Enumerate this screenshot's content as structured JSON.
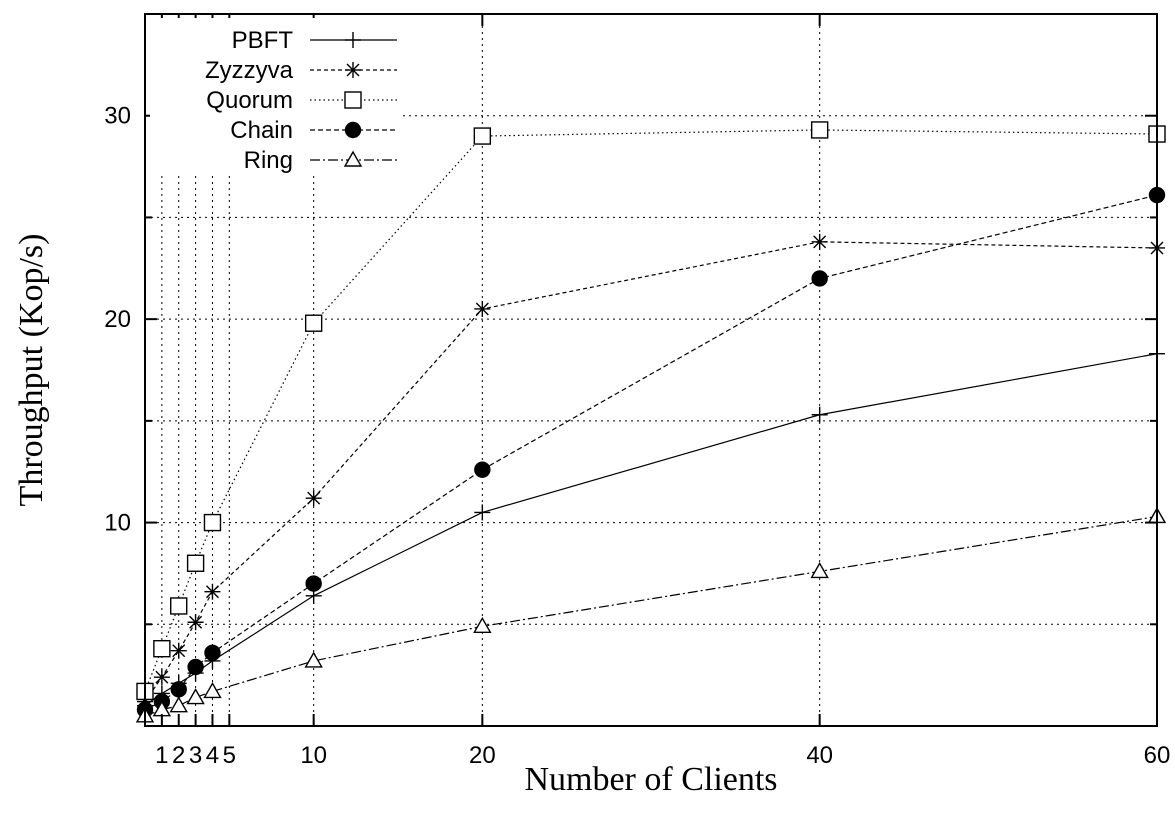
{
  "chart_data": {
    "type": "line",
    "xlabel": "Number of Clients",
    "ylabel": "Throughput (Kop/s)",
    "xlim": [
      0,
      60
    ],
    "ylim": [
      0,
      35
    ],
    "x_ticks": [
      1,
      2,
      3,
      4,
      5,
      10,
      20,
      40,
      60
    ],
    "x_tick_labels": [
      "1",
      "2",
      "3",
      "4",
      "5",
      "10",
      "20",
      "40",
      "60"
    ],
    "y_ticks": [
      10,
      20,
      30
    ],
    "y_tick_labels": [
      "10",
      "20",
      "30"
    ],
    "grid": true,
    "legend_position": "top-left",
    "x": [
      0,
      1,
      2,
      3,
      4,
      10,
      20,
      40,
      60
    ],
    "series": [
      {
        "name": "PBFT",
        "marker": "plus",
        "dash": "",
        "values": [
          1.0,
          1.6,
          2.1,
          2.6,
          3.2,
          6.4,
          10.5,
          15.3,
          18.3
        ]
      },
      {
        "name": "Zyzzyva",
        "marker": "star",
        "dash": "4 3",
        "values": [
          1.2,
          2.4,
          3.7,
          5.1,
          6.6,
          11.2,
          20.5,
          23.8,
          23.5
        ]
      },
      {
        "name": "Quorum",
        "marker": "square",
        "dash": "1.5 3",
        "values": [
          1.7,
          3.8,
          5.9,
          8.0,
          10.0,
          19.8,
          29.0,
          29.3,
          29.1
        ]
      },
      {
        "name": "Chain",
        "marker": "circle",
        "dash": "5 3",
        "values": [
          0.8,
          1.2,
          1.8,
          2.9,
          3.6,
          7.0,
          12.6,
          22.0,
          26.1
        ]
      },
      {
        "name": "Ring",
        "marker": "triangle",
        "dash": "10 3 2 3",
        "values": [
          0.5,
          0.8,
          1.0,
          1.4,
          1.7,
          3.2,
          4.9,
          7.6,
          10.3
        ]
      }
    ]
  }
}
